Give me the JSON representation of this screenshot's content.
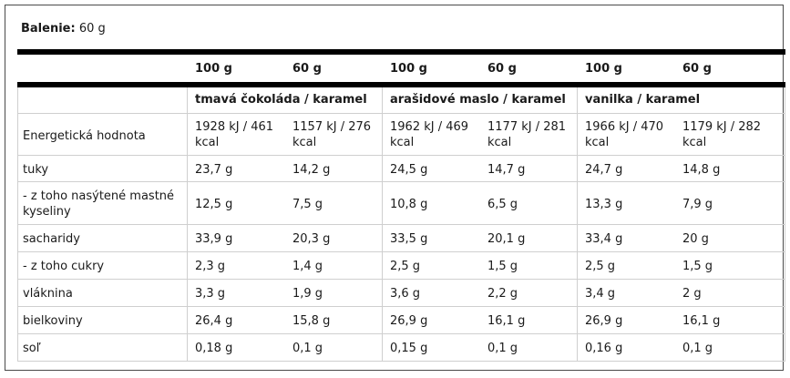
{
  "package": {
    "label": "Balenie:",
    "value": "60 g"
  },
  "columns": [
    "100 g",
    "60 g",
    "100 g",
    "60 g",
    "100 g",
    "60 g"
  ],
  "flavors": [
    "tmavá čokoláda / karamel",
    "arašidové maslo / karamel",
    "vanilka / karamel"
  ],
  "rows": [
    {
      "label": "Energetická hodnota",
      "values": [
        "1928 kJ / 461 kcal",
        "1157 kJ / 276 kcal",
        "1962 kJ / 469 kcal",
        "1177 kJ / 281 kcal",
        "1966 kJ / 470 kcal",
        "1179 kJ / 282 kcal"
      ]
    },
    {
      "label": "tuky",
      "values": [
        "23,7 g",
        "14,2 g",
        "24,5 g",
        "14,7 g",
        "24,7 g",
        "14,8 g"
      ]
    },
    {
      "label": "- z toho nasýtené mastné kyseliny",
      "values": [
        "12,5 g",
        "7,5 g",
        "10,8 g",
        "6,5 g",
        "13,3 g",
        "7,9 g"
      ]
    },
    {
      "label": "sacharidy",
      "values": [
        "33,9 g",
        "20,3 g",
        "33,5 g",
        "20,1 g",
        "33,4 g",
        "20 g"
      ]
    },
    {
      "label": "- z toho cukry",
      "values": [
        "2,3 g",
        "1,4 g",
        "2,5 g",
        "1,5 g",
        "2,5 g",
        "1,5 g"
      ]
    },
    {
      "label": "vláknina",
      "values": [
        "3,3 g",
        "1,9 g",
        "3,6 g",
        "2,2 g",
        "3,4 g",
        "2 g"
      ]
    },
    {
      "label": "bielkoviny",
      "values": [
        "26,4 g",
        "15,8 g",
        "26,9 g",
        "16,1 g",
        "26,9 g",
        "16,1 g"
      ]
    },
    {
      "label": "soľ",
      "values": [
        "0,18 g",
        "0,1 g",
        "0,15 g",
        "0,1 g",
        "0,16 g",
        "0,1 g"
      ]
    }
  ]
}
